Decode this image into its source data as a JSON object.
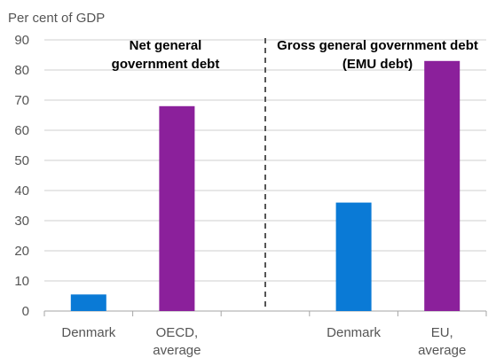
{
  "chart_data": {
    "type": "bar",
    "unit_label": "Per cent of GDP",
    "ylim": [
      0,
      90
    ],
    "yticks": [
      0,
      10,
      20,
      30,
      40,
      50,
      60,
      70,
      80,
      90
    ],
    "grid": true,
    "categories": [
      [
        "Denmark"
      ],
      [
        "OECD,",
        "average"
      ],
      [],
      [
        "Denmark"
      ],
      [
        "EU,",
        "average"
      ]
    ],
    "values": [
      5.5,
      68,
      null,
      36,
      83
    ],
    "bar_colors": [
      "#0a7ad6",
      "#8b209b",
      null,
      "#0a7ad6",
      "#8b209b"
    ],
    "annotations": [
      {
        "lines": [
          "Net general",
          "government debt"
        ],
        "panel": "left"
      },
      {
        "lines": [
          "Gross general government debt",
          "(EMU debt)"
        ],
        "panel": "right"
      }
    ],
    "divider": "dashed line between the two panels"
  }
}
